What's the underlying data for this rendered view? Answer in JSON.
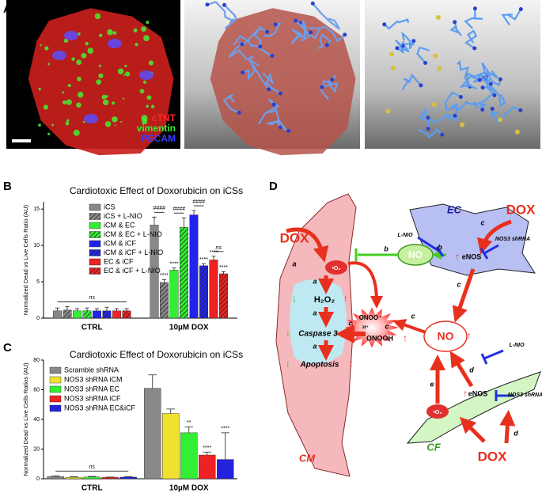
{
  "panels": {
    "a": "A",
    "b": "B",
    "c": "C",
    "d": "D"
  },
  "panel_a": {
    "legend": [
      {
        "text": "cTNT",
        "color": "#ff2a2a"
      },
      {
        "text": "vimentin",
        "color": "#33ee33"
      },
      {
        "text": "PECAM",
        "color": "#3b3bff"
      }
    ]
  },
  "chart_data": [
    {
      "type": "bar",
      "title": "Cardiotoxic Effect of Doxorubicin on iCSs",
      "y_label": "Normalized Dead vs Live Cells Ratio (AU)",
      "categories": [
        "CTRL",
        "10µM DOX"
      ],
      "ylim": [
        0,
        16
      ],
      "yticks": [
        0,
        5,
        10,
        15
      ],
      "legend": "upper left",
      "series": [
        {
          "name": "iCS",
          "color": "#888888",
          "hatched": false,
          "values": [
            1.0,
            12.8
          ],
          "errors": [
            0.4,
            1.1
          ]
        },
        {
          "name": "iCS + L-NIO",
          "color": "#888888",
          "hatched": true,
          "values": [
            1.1,
            4.9
          ],
          "errors": [
            0.5,
            0.4
          ]
        },
        {
          "name": "iCM & EC",
          "color": "#33ee33",
          "hatched": false,
          "values": [
            1.0,
            6.6
          ],
          "errors": [
            0.3,
            0.3
          ]
        },
        {
          "name": "iCM & EC + L-NIO",
          "color": "#33ee33",
          "hatched": true,
          "values": [
            1.0,
            12.5
          ],
          "errors": [
            0.4,
            1.3
          ]
        },
        {
          "name": "iCM & iCF",
          "color": "#2323ee",
          "hatched": false,
          "values": [
            1.0,
            14.2
          ],
          "errors": [
            0.3,
            0.6
          ]
        },
        {
          "name": "iCM & iCF + L-NIO",
          "color": "#2323ee",
          "hatched": true,
          "values": [
            1.0,
            7.2
          ],
          "errors": [
            0.5,
            0.3
          ]
        },
        {
          "name": "EC & iCF",
          "color": "#ee2222",
          "hatched": false,
          "values": [
            1.0,
            8.0
          ],
          "errors": [
            0.3,
            0.5
          ]
        },
        {
          "name": "EC & iCF + L-NIO",
          "color": "#ee2222",
          "hatched": true,
          "values": [
            1.0,
            6.1
          ],
          "errors": [
            0.3,
            0.3
          ]
        }
      ],
      "annotations": [
        {
          "text": "ns",
          "category": 0
        },
        {
          "text": "****",
          "category": 1,
          "series": [
            1
          ]
        },
        {
          "text": "****",
          "category": 1,
          "series": [
            2
          ]
        },
        {
          "text": "****",
          "category": 1,
          "series": [
            5
          ]
        },
        {
          "text": "****",
          "category": 1,
          "series": [
            6
          ]
        },
        {
          "text": "****",
          "category": 1,
          "series": [
            7
          ]
        },
        {
          "text": "####",
          "category": 1,
          "series": [
            0,
            1
          ]
        },
        {
          "text": "####",
          "category": 1,
          "series": [
            2,
            3
          ]
        },
        {
          "text": "####",
          "category": 1,
          "series": [
            4,
            5
          ]
        },
        {
          "text": "ns",
          "category": 1,
          "series": [
            6,
            7
          ]
        }
      ]
    },
    {
      "type": "bar",
      "title": "Cardiotoxic Effect of Doxorubicin on iCSs",
      "y_label": "Normalized Dead vs Live Cells Ratios (AU)",
      "categories": [
        "CTRL",
        "10µM DOX"
      ],
      "ylim": [
        0,
        80
      ],
      "yticks": [
        0,
        20,
        40,
        60,
        80
      ],
      "legend": "upper left",
      "series": [
        {
          "name": "Scramble shRNA",
          "color": "#888888",
          "values": [
            1.5,
            61
          ],
          "errors": [
            0.5,
            9
          ]
        },
        {
          "name": "NOS3 shRNA iCM",
          "color": "#f0e030",
          "values": [
            1.0,
            44
          ],
          "errors": [
            0.3,
            3
          ]
        },
        {
          "name": "NOS3 shRNA EC",
          "color": "#33ee33",
          "values": [
            1.2,
            31
          ],
          "errors": [
            0.4,
            4
          ]
        },
        {
          "name": "NOS3 shRNA iCF",
          "color": "#ee2222",
          "values": [
            0.9,
            16
          ],
          "errors": [
            0.2,
            2
          ]
        },
        {
          "name": "NOS3 shRNA EC&iCF",
          "color": "#2323dd",
          "values": [
            1.1,
            13
          ],
          "errors": [
            0.3,
            18
          ]
        }
      ],
      "annotations": [
        {
          "text": "ns",
          "category": 0
        },
        {
          "text": "**",
          "category": 1,
          "series": [
            2
          ]
        },
        {
          "text": "****",
          "category": 1,
          "series": [
            3
          ]
        },
        {
          "text": "****",
          "category": 1,
          "series": [
            4
          ]
        }
      ]
    }
  ],
  "diagram": {
    "dox": [
      "DOX",
      "DOX",
      "DOX"
    ],
    "cells": {
      "ec": "EC",
      "cm": "CM",
      "cf": "CF"
    },
    "no": [
      "NO",
      "NO"
    ],
    "enos": [
      "eNOS",
      "eNOS"
    ],
    "lnio": [
      "L-NIO",
      "L-NIO"
    ],
    "shrna": [
      "NOS3 shRNA",
      "NOS3 shRNA"
    ],
    "superoxide": "•O₂",
    "h2o2": "H₂O₂",
    "caspase": "Caspase 3",
    "apoptosis": "Apoptosis",
    "onoo": "ONOO⁻",
    "hplus": "H⁺",
    "onooh": "ONOOH",
    "up": "↑",
    "down": "↓",
    "edges": [
      "a",
      "a",
      "a",
      "a",
      "b",
      "b",
      "c",
      "c",
      "c",
      "c",
      "c",
      "d",
      "d",
      "e"
    ]
  }
}
